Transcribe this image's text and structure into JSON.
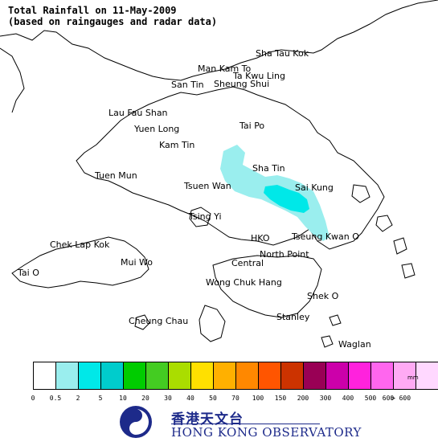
{
  "title": {
    "line1": "Total Rainfall on 11-May-2009",
    "line2": "(based on raingauges and radar data)"
  },
  "map": {
    "places": [
      "Sha Tau Kok",
      "Man Kam To",
      "Ta Kwu Ling",
      "San Tin",
      "Sheung Shui",
      "Lau Fau Shan",
      "Yuen Long",
      "Tai Po",
      "Kam Tin",
      "Sha Tin",
      "Tuen Mun",
      "Tsuen Wan",
      "Sai Kung",
      "Tsing Yi",
      "HKO",
      "Tseung Kwan O",
      "Chek Lap Kok",
      "North Point",
      "Mui Wo",
      "Central",
      "Tai O",
      "Wong Chuk Hang",
      "Shek O",
      "Cheung Chau",
      "Stanley",
      "Waglan"
    ],
    "rain_areas": [
      {
        "level": "0.5 - 2 mm",
        "color": "#9aeeee"
      },
      {
        "level": "2 - 5 mm",
        "color": "#00e8e8"
      }
    ]
  },
  "legend": {
    "unit": "mm",
    "colors": [
      "#ffffff",
      "#9aeeee",
      "#00e8e8",
      "#00cccc",
      "#00cc00",
      "#44cc22",
      "#aadd00",
      "#ffe000",
      "#ffb000",
      "#ff8800",
      "#ff5500",
      "#cc3300",
      "#990055",
      "#cc00aa",
      "#ff22dd",
      "#ff66ee",
      "#ffaaf4",
      "#ffd8ff"
    ],
    "ticks": [
      "0",
      "0.5",
      "2",
      "5",
      "10",
      "20",
      "30",
      "40",
      "50",
      "70",
      "100",
      "150",
      "200",
      "300",
      "400",
      "500",
      "600",
      "> 600"
    ]
  },
  "branding": {
    "chinese_name": "香港天文台",
    "english_name": "HONG KONG OBSERVATORY"
  }
}
